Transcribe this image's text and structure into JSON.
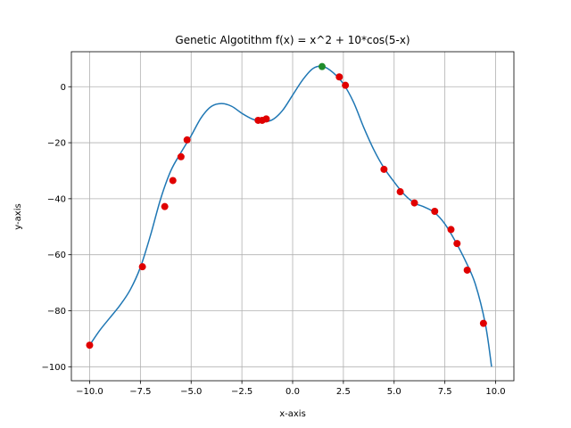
{
  "chart_data": {
    "type": "scatter",
    "title": "Genetic Algotithm f(x) = x^2 + 10*cos(5-x)",
    "xlabel": "x-axis",
    "ylabel": "y-axis",
    "xlim": [
      -10.9,
      10.9
    ],
    "ylim": [
      -105,
      12.5
    ],
    "grid": true,
    "xticks": [
      -10.0,
      -7.5,
      -5.0,
      -2.5,
      0.0,
      2.5,
      5.0,
      7.5,
      10.0
    ],
    "xtick_labels": [
      "−10.0",
      "−7.5",
      "−5.0",
      "−2.5",
      "0.0",
      "2.5",
      "5.0",
      "7.5",
      "10.0"
    ],
    "yticks": [
      0,
      -20,
      -40,
      -60,
      -80,
      -100
    ],
    "ytick_labels": [
      "0",
      "−20",
      "−40",
      "−60",
      "−80",
      "−100"
    ],
    "series": [
      {
        "kind": "line",
        "color": "#1f77b4",
        "x": [
          -10.0,
          -9.5,
          -9.0,
          -8.5,
          -8.0,
          -7.5,
          -7.0,
          -6.5,
          -6.0,
          -5.5,
          -5.0,
          -4.5,
          -4.0,
          -3.5,
          -3.0,
          -2.5,
          -2.0,
          -1.5,
          -1.0,
          -0.5,
          0.0,
          0.5,
          1.0,
          1.5,
          2.0,
          2.5,
          3.0,
          3.5,
          4.0,
          4.5,
          5.0,
          5.5,
          6.0,
          6.5,
          7.0,
          7.5,
          8.0,
          8.5,
          9.0,
          9.5,
          9.8
        ],
        "y": [
          -92.3,
          -87.0,
          -82.5,
          -78.0,
          -72.5,
          -64.5,
          -53.0,
          -40.0,
          -30.0,
          -23.5,
          -17.5,
          -11.0,
          -7.0,
          -6.0,
          -7.0,
          -9.5,
          -11.5,
          -12.5,
          -11.8,
          -8.5,
          -3.0,
          2.5,
          6.5,
          7.2,
          5.0,
          1.0,
          -5.5,
          -14.5,
          -22.5,
          -29.0,
          -34.0,
          -38.5,
          -41.5,
          -43.0,
          -45.0,
          -49.0,
          -55.0,
          -62.0,
          -70.5,
          -85.0,
          -100.0
        ]
      },
      {
        "kind": "scatter",
        "color": "#e00000",
        "x": [
          -10.0,
          -7.4,
          -6.3,
          -5.9,
          -5.5,
          -5.2,
          -1.7,
          -1.5,
          -1.3,
          2.3,
          2.6,
          4.5,
          5.3,
          6.0,
          7.0,
          7.8,
          8.1,
          8.6,
          9.4
        ],
        "y": [
          -92.3,
          -64.3,
          -42.8,
          -33.5,
          -25.0,
          -19.0,
          -12.0,
          -12.0,
          -11.5,
          3.5,
          0.5,
          -29.5,
          -37.5,
          -41.5,
          -44.5,
          -51.0,
          -56.0,
          -65.5,
          -84.5
        ]
      },
      {
        "kind": "scatter",
        "color": "#1f8c2b",
        "x": [
          1.45
        ],
        "y": [
          7.2
        ]
      }
    ]
  }
}
